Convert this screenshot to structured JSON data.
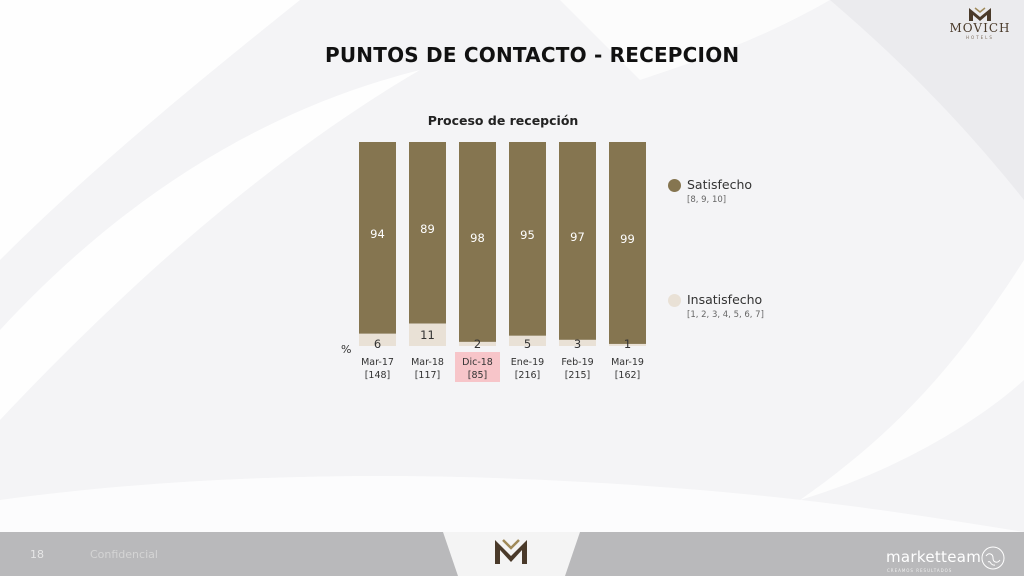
{
  "page": {
    "title": "PUNTOS DE CONTACTO - RECEPCION",
    "slide_number": "18",
    "footer_text": "Confidencial"
  },
  "brand": {
    "name": "MOVICH",
    "subtitle": "HOTELS",
    "agency": "marketteam",
    "agency_tagline": "CREAMOS RESULTADOS"
  },
  "colors": {
    "satisfecho": "#857550",
    "insatisfecho": "#e9e1d6",
    "highlight": "#f7c5c9",
    "footer": "#b9b9bb"
  },
  "chart_data": {
    "type": "bar",
    "stacked": true,
    "title": "Proceso de recepción",
    "unit_label": "%",
    "ylim": [
      0,
      100
    ],
    "categories": [
      "Mar-17",
      "Mar-18",
      "Dic-18",
      "Ene-19",
      "Feb-19",
      "Mar-19"
    ],
    "sample_sizes": [
      "[148]",
      "[117]",
      "[85]",
      "[216]",
      "[215]",
      "[162]"
    ],
    "highlighted_category": "Dic-18",
    "series": [
      {
        "name": "Satisfecho",
        "note": "[8, 9, 10]",
        "values": [
          94,
          89,
          98,
          95,
          97,
          99
        ]
      },
      {
        "name": "Insatisfecho",
        "note": "[1, 2, 3, 4, 5, 6, 7]",
        "values": [
          6,
          11,
          2,
          5,
          3,
          1
        ]
      }
    ],
    "legend": "right",
    "grid": false
  }
}
